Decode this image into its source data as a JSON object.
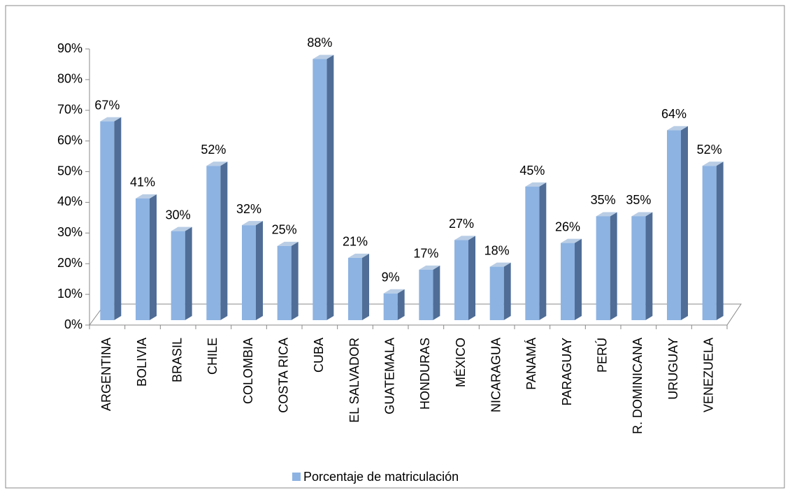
{
  "chart_data": {
    "type": "bar3d",
    "categories": [
      "ARGENTINA",
      "BOLIVIA",
      "BRASIL",
      "CHILE",
      "COLOMBIA",
      "COSTA RICA",
      "CUBA",
      "EL SALVADOR",
      "GUATEMALA",
      "HONDURAS",
      "MÉXICO",
      "NICARAGUA",
      "PANAMÁ",
      "PARAGUAY",
      "PERÚ",
      "R. DOMINICANA",
      "URUGUAY",
      "VENEZUELA"
    ],
    "series": [
      {
        "name": "Porcentaje de matriculación",
        "color": "#8db3e2",
        "values": [
          67,
          41,
          30,
          52,
          32,
          25,
          88,
          21,
          9,
          17,
          27,
          18,
          45,
          26,
          35,
          35,
          64,
          52
        ],
        "value_labels": [
          "67%",
          "41%",
          "30%",
          "52%",
          "32%",
          "25%",
          "88%",
          "21%",
          "9%",
          "17%",
          "27%",
          "18%",
          "45%",
          "26%",
          "35%",
          "35%",
          "64%",
          "52%"
        ]
      }
    ],
    "ylim": [
      0,
      90
    ],
    "yticks": [
      {
        "value": 0,
        "label": "0%"
      },
      {
        "value": 10,
        "label": "10%"
      },
      {
        "value": 20,
        "label": "20%"
      },
      {
        "value": 30,
        "label": "30%"
      },
      {
        "value": 40,
        "label": "40%"
      },
      {
        "value": 50,
        "label": "50%"
      },
      {
        "value": 60,
        "label": "60%"
      },
      {
        "value": 70,
        "label": "70%"
      },
      {
        "value": 80,
        "label": "80%"
      },
      {
        "value": 90,
        "label": "90%"
      }
    ],
    "legend": "bottom"
  }
}
